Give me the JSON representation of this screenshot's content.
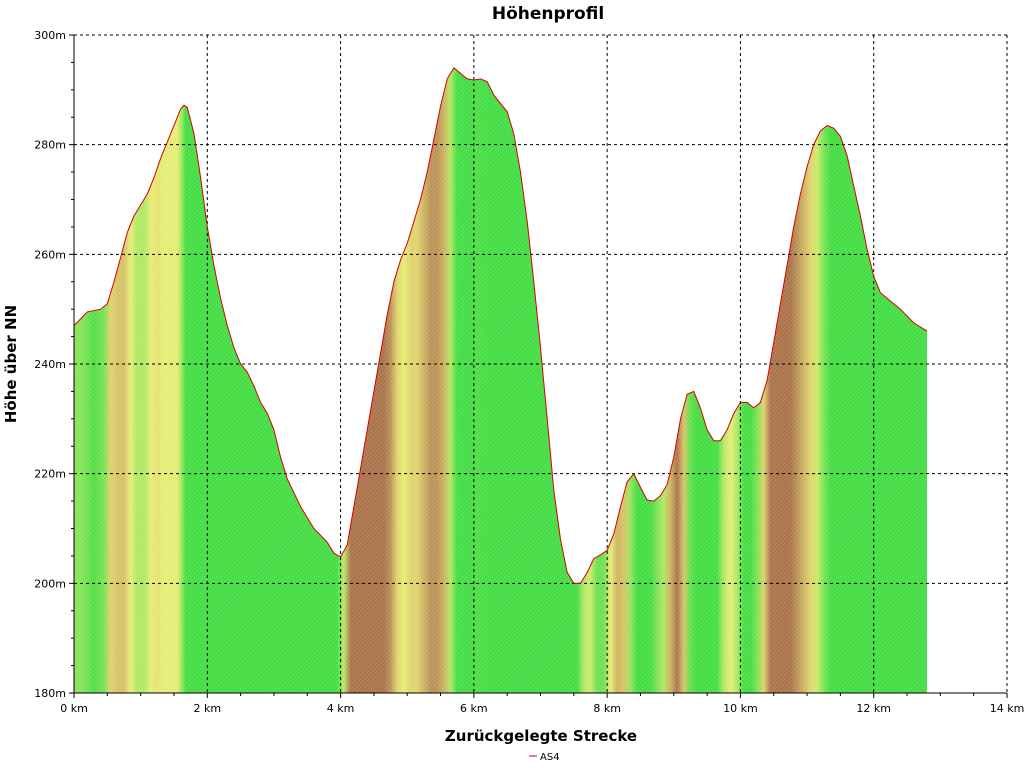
{
  "chart_data": {
    "type": "area",
    "title": "Höhenprofil",
    "xlabel": "Zurückgelegte Strecke",
    "ylabel": "Höhe über NN",
    "xlim": [
      0,
      14
    ],
    "ylim": [
      180,
      300
    ],
    "x_ticks": [
      {
        "value": 0,
        "label": "0 km"
      },
      {
        "value": 2,
        "label": "2 km"
      },
      {
        "value": 4,
        "label": "4 km"
      },
      {
        "value": 6,
        "label": "6 km"
      },
      {
        "value": 8,
        "label": "8 km"
      },
      {
        "value": 10,
        "label": "10 km"
      },
      {
        "value": 12,
        "label": "12 km"
      },
      {
        "value": 14,
        "label": "14 km"
      }
    ],
    "y_ticks": [
      {
        "value": 180,
        "label": "180m"
      },
      {
        "value": 200,
        "label": "200m"
      },
      {
        "value": 220,
        "label": "220m"
      },
      {
        "value": 240,
        "label": "240m"
      },
      {
        "value": 260,
        "label": "260m"
      },
      {
        "value": 280,
        "label": "280m"
      },
      {
        "value": 300,
        "label": "300m"
      }
    ],
    "grid": true,
    "legend_position": "bottom",
    "series": [
      {
        "name": "AS4",
        "line_color": "#d40000",
        "points": [
          [
            0.0,
            247
          ],
          [
            0.2,
            249.5
          ],
          [
            0.4,
            250
          ],
          [
            0.5,
            251
          ],
          [
            0.6,
            255
          ],
          [
            0.7,
            259.5
          ],
          [
            0.8,
            264
          ],
          [
            0.9,
            267
          ],
          [
            1.0,
            269
          ],
          [
            1.1,
            271
          ],
          [
            1.2,
            274
          ],
          [
            1.3,
            277.5
          ],
          [
            1.4,
            280.5
          ],
          [
            1.5,
            283.5
          ],
          [
            1.6,
            286.5
          ],
          [
            1.65,
            287.2
          ],
          [
            1.7,
            286.8
          ],
          [
            1.8,
            282
          ],
          [
            1.9,
            274
          ],
          [
            2.0,
            265
          ],
          [
            2.1,
            258
          ],
          [
            2.2,
            252
          ],
          [
            2.3,
            247
          ],
          [
            2.4,
            243
          ],
          [
            2.5,
            240
          ],
          [
            2.6,
            238.5
          ],
          [
            2.7,
            236
          ],
          [
            2.8,
            233
          ],
          [
            2.9,
            231
          ],
          [
            3.0,
            228
          ],
          [
            3.1,
            223
          ],
          [
            3.2,
            219
          ],
          [
            3.4,
            214
          ],
          [
            3.6,
            210
          ],
          [
            3.8,
            207.5
          ],
          [
            3.9,
            205.5
          ],
          [
            4.0,
            204.8
          ],
          [
            4.1,
            207
          ],
          [
            4.2,
            214
          ],
          [
            4.3,
            221
          ],
          [
            4.4,
            228
          ],
          [
            4.5,
            235
          ],
          [
            4.6,
            242
          ],
          [
            4.7,
            249
          ],
          [
            4.8,
            255
          ],
          [
            4.9,
            259
          ],
          [
            5.0,
            262
          ],
          [
            5.1,
            266
          ],
          [
            5.2,
            270
          ],
          [
            5.3,
            275
          ],
          [
            5.4,
            281
          ],
          [
            5.5,
            287
          ],
          [
            5.6,
            292
          ],
          [
            5.7,
            294
          ],
          [
            5.8,
            293
          ],
          [
            5.9,
            292
          ],
          [
            6.0,
            291.8
          ],
          [
            6.1,
            292
          ],
          [
            6.2,
            291.5
          ],
          [
            6.3,
            289
          ],
          [
            6.4,
            287.5
          ],
          [
            6.5,
            286
          ],
          [
            6.6,
            282
          ],
          [
            6.7,
            275
          ],
          [
            6.8,
            266
          ],
          [
            6.9,
            255
          ],
          [
            7.0,
            243
          ],
          [
            7.1,
            230
          ],
          [
            7.2,
            217
          ],
          [
            7.3,
            208
          ],
          [
            7.4,
            202
          ],
          [
            7.5,
            200
          ],
          [
            7.6,
            200
          ],
          [
            7.7,
            202
          ],
          [
            7.8,
            204.5
          ],
          [
            7.9,
            205.2
          ],
          [
            8.0,
            206
          ],
          [
            8.1,
            209
          ],
          [
            8.2,
            214
          ],
          [
            8.3,
            218.5
          ],
          [
            8.4,
            220
          ],
          [
            8.5,
            217.5
          ],
          [
            8.6,
            215.2
          ],
          [
            8.7,
            215
          ],
          [
            8.8,
            216
          ],
          [
            8.9,
            218
          ],
          [
            9.0,
            223
          ],
          [
            9.1,
            230
          ],
          [
            9.2,
            234.5
          ],
          [
            9.3,
            235
          ],
          [
            9.4,
            232
          ],
          [
            9.5,
            228
          ],
          [
            9.6,
            226
          ],
          [
            9.7,
            226
          ],
          [
            9.8,
            228
          ],
          [
            9.9,
            231
          ],
          [
            10.0,
            233
          ],
          [
            10.1,
            233
          ],
          [
            10.2,
            232
          ],
          [
            10.3,
            233
          ],
          [
            10.4,
            237
          ],
          [
            10.5,
            244
          ],
          [
            10.6,
            251
          ],
          [
            10.7,
            258
          ],
          [
            10.8,
            265
          ],
          [
            10.9,
            271
          ],
          [
            11.0,
            276
          ],
          [
            11.1,
            280
          ],
          [
            11.2,
            282.5
          ],
          [
            11.3,
            283.5
          ],
          [
            11.4,
            283
          ],
          [
            11.5,
            281.5
          ],
          [
            11.6,
            278
          ],
          [
            11.7,
            272.5
          ],
          [
            11.8,
            267
          ],
          [
            11.9,
            261
          ],
          [
            12.0,
            256
          ],
          [
            12.1,
            253
          ],
          [
            12.2,
            252
          ],
          [
            12.4,
            250
          ],
          [
            12.6,
            247.5
          ],
          [
            12.8,
            246
          ]
        ]
      }
    ],
    "fill_gradient_colors": {
      "flat": "#44dd44",
      "moderate": "#eeee77",
      "steep": "#883333"
    }
  }
}
